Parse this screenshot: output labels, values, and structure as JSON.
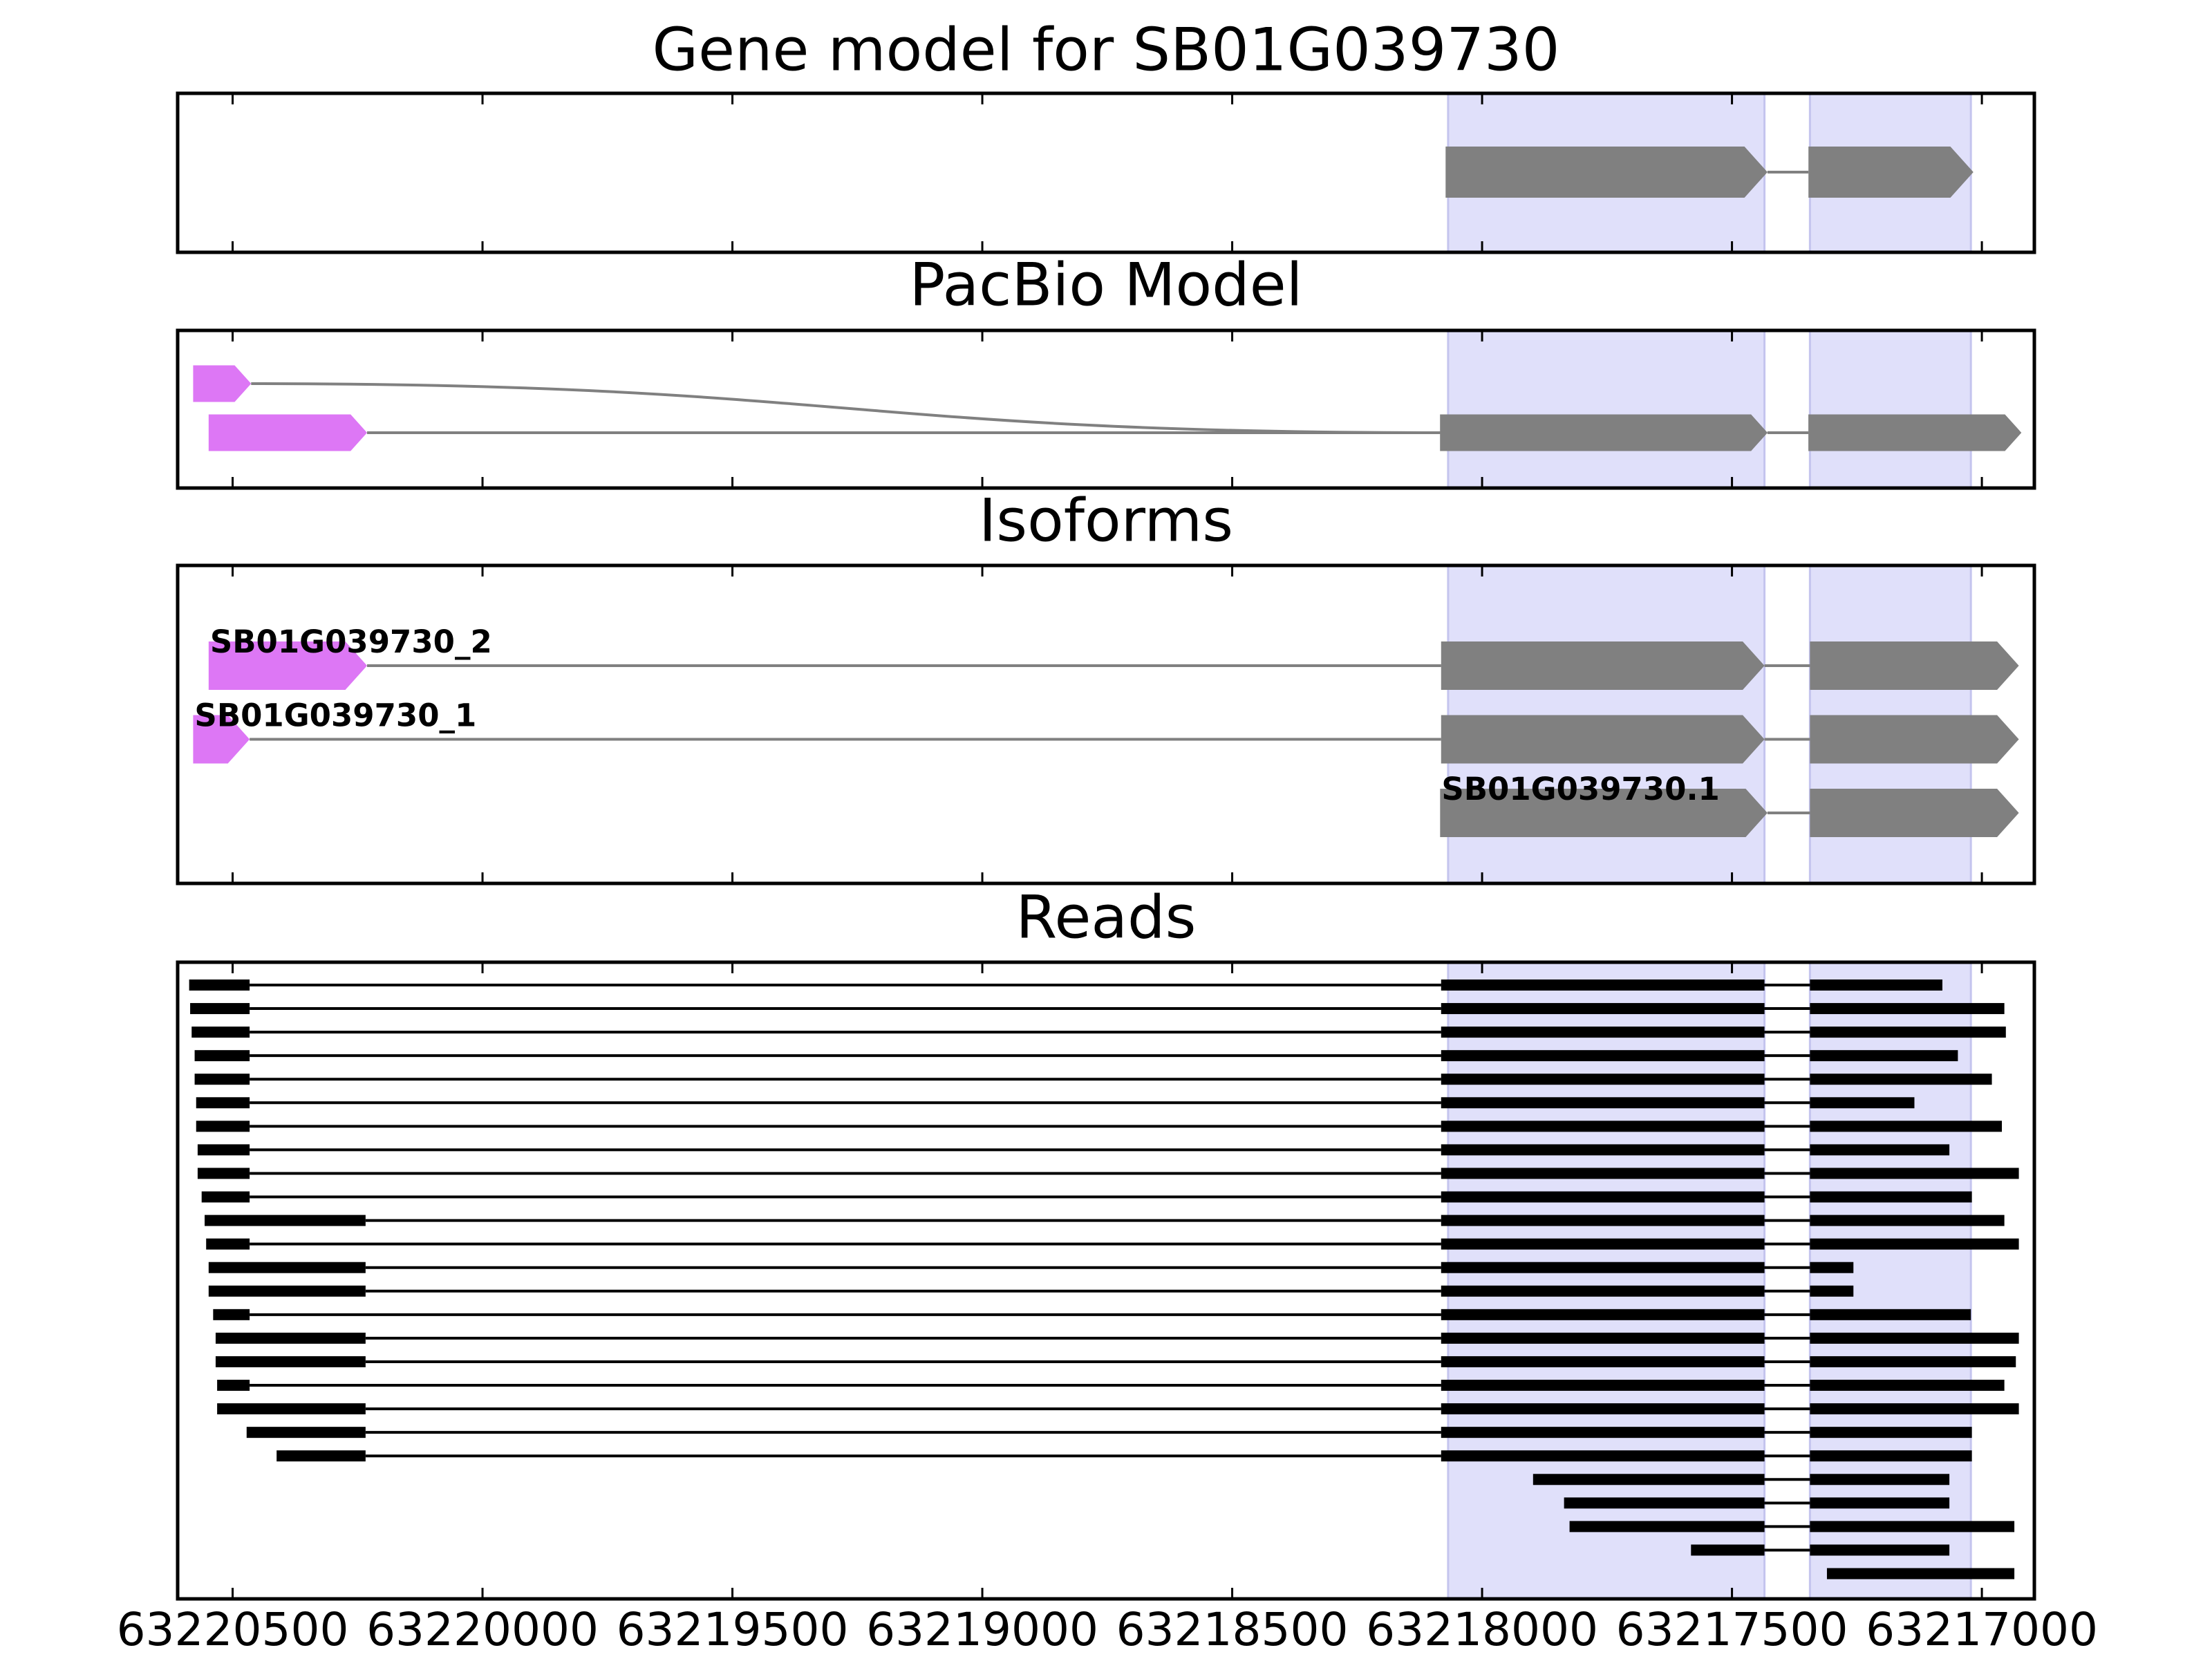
{
  "chart_data": {
    "type": "gene_tracks",
    "xlim": [
      63220610,
      63216895
    ],
    "xticks": [
      63220500,
      63220000,
      63219500,
      63219000,
      63218500,
      63218000,
      63217500,
      63217000
    ],
    "highlight_color": "#e0e0fa",
    "highlights": [
      [
        63218068,
        63217435
      ],
      [
        63217344,
        63217022
      ]
    ],
    "panels": [
      {
        "title": "Gene model for SB01G039730",
        "transcripts": [
          {
            "color": "#808080",
            "exons": [
              [
                63218073,
                63217429
              ],
              [
                63217347,
                63217017
              ]
            ]
          }
        ]
      },
      {
        "title": "PacBio Model",
        "merge_shared": true,
        "transcripts": [
          {
            "colors": [
              "#dd77f5",
              "#808080",
              "#808080"
            ],
            "exons": [
              [
                63220579,
                63220463
              ],
              [
                63218084,
                63217429
              ],
              [
                63217347,
                63216921
              ]
            ]
          },
          {
            "colors": [
              "#dd77f5",
              "#808080",
              "#808080"
            ],
            "exons": [
              [
                63220548,
                63220231
              ],
              [
                63218084,
                63217429
              ],
              [
                63217347,
                63216921
              ]
            ]
          }
        ]
      },
      {
        "title": "Isoforms",
        "transcripts": [
          {
            "name": "SB01G039730_2",
            "colors": [
              "#dd77f5",
              "#808080",
              "#808080"
            ],
            "exons": [
              [
                63220548,
                63220231
              ],
              [
                63218082,
                63217435
              ],
              [
                63217344,
                63216926
              ]
            ]
          },
          {
            "name": "SB01G039730_1",
            "colors": [
              "#dd77f5",
              "#808080",
              "#808080"
            ],
            "exons": [
              [
                63220579,
                63220466
              ],
              [
                63218082,
                63217435
              ],
              [
                63217344,
                63216926
              ]
            ]
          },
          {
            "name": "SB01G039730.1",
            "colors": [
              "#808080",
              "#808080"
            ],
            "exons": [
              [
                63218084,
                63217429
              ],
              [
                63217344,
                63216926
              ]
            ]
          }
        ]
      },
      {
        "title": "Reads",
        "transcripts": [
          {
            "color": "#000000",
            "exons": [
              [
                63220587,
                63220466
              ],
              [
                63218082,
                63217435
              ],
              [
                63217344,
                63217079
              ]
            ]
          },
          {
            "color": "#000000",
            "exons": [
              [
                63220585,
                63220466
              ],
              [
                63218082,
                63217435
              ],
              [
                63217344,
                63216955
              ]
            ]
          },
          {
            "color": "#000000",
            "exons": [
              [
                63220582,
                63220466
              ],
              [
                63218082,
                63217435
              ],
              [
                63217344,
                63216952
              ]
            ]
          },
          {
            "color": "#000000",
            "exons": [
              [
                63220576,
                63220466
              ],
              [
                63218082,
                63217435
              ],
              [
                63217344,
                63217048
              ]
            ]
          },
          {
            "color": "#000000",
            "exons": [
              [
                63220576,
                63220466
              ],
              [
                63218082,
                63217435
              ],
              [
                63217344,
                63216980
              ]
            ]
          },
          {
            "color": "#000000",
            "exons": [
              [
                63220573,
                63220466
              ],
              [
                63218082,
                63217435
              ],
              [
                63217344,
                63217135
              ]
            ]
          },
          {
            "color": "#000000",
            "exons": [
              [
                63220573,
                63220466
              ],
              [
                63218082,
                63217435
              ],
              [
                63217344,
                63216960
              ]
            ]
          },
          {
            "color": "#000000",
            "exons": [
              [
                63220570,
                63220466
              ],
              [
                63218082,
                63217435
              ],
              [
                63217344,
                63217065
              ]
            ]
          },
          {
            "color": "#000000",
            "exons": [
              [
                63220570,
                63220466
              ],
              [
                63218082,
                63217435
              ],
              [
                63217344,
                63216926
              ]
            ]
          },
          {
            "color": "#000000",
            "exons": [
              [
                63220562,
                63220466
              ],
              [
                63218082,
                63217435
              ],
              [
                63217344,
                63217020
              ]
            ]
          },
          {
            "color": "#000000",
            "exons": [
              [
                63220556,
                63220234
              ],
              [
                63218082,
                63217435
              ],
              [
                63217344,
                63216955
              ]
            ]
          },
          {
            "color": "#000000",
            "exons": [
              [
                63220553,
                63220466
              ],
              [
                63218082,
                63217435
              ],
              [
                63217344,
                63216926
              ]
            ]
          },
          {
            "color": "#000000",
            "exons": [
              [
                63220548,
                63220234
              ],
              [
                63218082,
                63217435
              ],
              [
                63217344,
                63217257
              ]
            ]
          },
          {
            "color": "#000000",
            "exons": [
              [
                63220548,
                63220234
              ],
              [
                63218082,
                63217435
              ],
              [
                63217344,
                63217257
              ]
            ]
          },
          {
            "color": "#000000",
            "exons": [
              [
                63220539,
                63220466
              ],
              [
                63218082,
                63217435
              ],
              [
                63217344,
                63217022
              ]
            ]
          },
          {
            "color": "#000000",
            "exons": [
              [
                63220534,
                63220234
              ],
              [
                63218082,
                63217435
              ],
              [
                63217344,
                63216926
              ]
            ]
          },
          {
            "color": "#000000",
            "exons": [
              [
                63220534,
                63220234
              ],
              [
                63218082,
                63217435
              ],
              [
                63217344,
                63216932
              ]
            ]
          },
          {
            "color": "#000000",
            "exons": [
              [
                63220531,
                63220466
              ],
              [
                63218082,
                63217435
              ],
              [
                63217344,
                63216955
              ]
            ]
          },
          {
            "color": "#000000",
            "exons": [
              [
                63220531,
                63220234
              ],
              [
                63218082,
                63217435
              ],
              [
                63217344,
                63216926
              ]
            ]
          },
          {
            "color": "#000000",
            "exons": [
              [
                63220472,
                63220234
              ],
              [
                63218082,
                63217435
              ],
              [
                63217344,
                63217020
              ]
            ]
          },
          {
            "color": "#000000",
            "exons": [
              [
                63220412,
                63220234
              ],
              [
                63218082,
                63217435
              ],
              [
                63217344,
                63217020
              ]
            ]
          },
          {
            "color": "#000000",
            "exons": [
              [
                63217898,
                63217435
              ],
              [
                63217344,
                63217065
              ]
            ]
          },
          {
            "color": "#000000",
            "exons": [
              [
                63217836,
                63217435
              ],
              [
                63217344,
                63217065
              ]
            ]
          },
          {
            "color": "#000000",
            "exons": [
              [
                63217825,
                63217435
              ],
              [
                63217344,
                63216935
              ]
            ]
          },
          {
            "color": "#000000",
            "exons": [
              [
                63217582,
                63217435
              ],
              [
                63217344,
                63217065
              ]
            ]
          },
          {
            "color": "#000000",
            "exons": [
              [
                63217310,
                63216935
              ]
            ]
          }
        ]
      }
    ]
  }
}
